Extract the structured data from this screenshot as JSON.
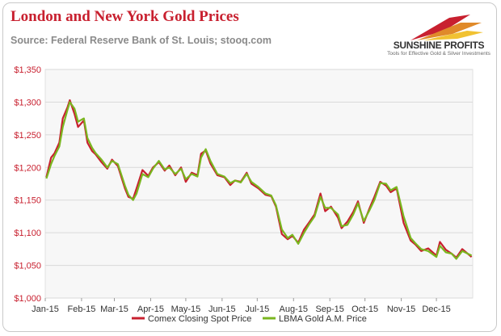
{
  "header": {
    "title": "London and New York Gold Prices",
    "subtitle": "Source: Federal Reserve Bank of St. Louis; stooq.com"
  },
  "logo": {
    "name": "SUNSHINE PROFITS",
    "tagline": "Tools for Effective Gold & Silver Investments"
  },
  "colors": {
    "comex": "#c8202f",
    "lbma": "#7ab61f",
    "grid": "#d9d9d9",
    "plot_bg": "#f7f7f7",
    "y_tick": "#c8202f"
  },
  "chart_data": {
    "type": "line",
    "title": "London and New York Gold Prices",
    "xlabel": "",
    "ylabel": "",
    "ylim": [
      1000,
      1350
    ],
    "y_ticks": [
      "$1,000",
      "$1,050",
      "$1,100",
      "$1,150",
      "$1,200",
      "$1,250",
      "$1,300",
      "$1,350"
    ],
    "y_tick_values": [
      1000,
      1050,
      1100,
      1150,
      1200,
      1250,
      1300,
      1350
    ],
    "x_ticks": [
      "Jan-15",
      "Feb-15",
      "Mar-15",
      "Apr-15",
      "May-15",
      "Jun-15",
      "Jul-15",
      "Aug-15",
      "Sep-15",
      "Oct-15",
      "Nov-15",
      "Dec-15"
    ],
    "grid": true,
    "legend_position": "bottom",
    "series": [
      {
        "name": "Comex Closing Spot Price",
        "x": [
          "2015-01-02",
          "2015-01-06",
          "2015-01-09",
          "2015-01-13",
          "2015-01-16",
          "2015-01-20",
          "2015-01-22",
          "2015-01-26",
          "2015-01-29",
          "2015-02-03",
          "2015-02-06",
          "2015-02-10",
          "2015-02-13",
          "2015-02-18",
          "2015-02-23",
          "2015-02-27",
          "2015-03-04",
          "2015-03-10",
          "2015-03-13",
          "2015-03-17",
          "2015-03-20",
          "2015-03-25",
          "2015-03-30",
          "2015-04-03",
          "2015-04-08",
          "2015-04-13",
          "2015-04-17",
          "2015-04-22",
          "2015-04-27",
          "2015-05-01",
          "2015-05-06",
          "2015-05-11",
          "2015-05-14",
          "2015-05-18",
          "2015-05-22",
          "2015-05-28",
          "2015-06-03",
          "2015-06-08",
          "2015-06-12",
          "2015-06-17",
          "2015-06-22",
          "2015-06-26",
          "2015-07-02",
          "2015-07-08",
          "2015-07-13",
          "2015-07-17",
          "2015-07-22",
          "2015-07-27",
          "2015-07-31",
          "2015-08-05",
          "2015-08-10",
          "2015-08-14",
          "2015-08-19",
          "2015-08-24",
          "2015-08-28",
          "2015-09-02",
          "2015-09-08",
          "2015-09-11",
          "2015-09-16",
          "2015-09-21",
          "2015-09-25",
          "2015-09-30",
          "2015-10-05",
          "2015-10-09",
          "2015-10-14",
          "2015-10-19",
          "2015-10-23",
          "2015-10-28",
          "2015-11-03",
          "2015-11-09",
          "2015-11-13",
          "2015-11-18",
          "2015-11-24",
          "2015-12-01",
          "2015-12-04",
          "2015-12-09",
          "2015-12-14",
          "2015-12-18",
          "2015-12-23",
          "2015-12-31"
        ],
        "values": [
          1185,
          1215,
          1222,
          1238,
          1275,
          1292,
          1303,
          1282,
          1262,
          1272,
          1238,
          1225,
          1220,
          1208,
          1198,
          1212,
          1202,
          1168,
          1155,
          1152,
          1168,
          1196,
          1187,
          1200,
          1208,
          1195,
          1203,
          1188,
          1200,
          1178,
          1192,
          1188,
          1221,
          1226,
          1206,
          1188,
          1185,
          1173,
          1180,
          1178,
          1192,
          1175,
          1168,
          1158,
          1156,
          1140,
          1098,
          1090,
          1095,
          1085,
          1105,
          1115,
          1128,
          1160,
          1133,
          1140,
          1123,
          1107,
          1117,
          1132,
          1148,
          1115,
          1138,
          1155,
          1178,
          1172,
          1162,
          1168,
          1115,
          1088,
          1082,
          1072,
          1076,
          1065,
          1086,
          1074,
          1068,
          1062,
          1075,
          1063
        ]
      },
      {
        "name": "LBMA Gold A.M. Price",
        "x": [
          "2015-01-02",
          "2015-01-06",
          "2015-01-09",
          "2015-01-13",
          "2015-01-16",
          "2015-01-20",
          "2015-01-22",
          "2015-01-26",
          "2015-01-29",
          "2015-02-03",
          "2015-02-06",
          "2015-02-10",
          "2015-02-13",
          "2015-02-18",
          "2015-02-23",
          "2015-02-27",
          "2015-03-04",
          "2015-03-10",
          "2015-03-13",
          "2015-03-17",
          "2015-03-20",
          "2015-03-25",
          "2015-03-30",
          "2015-04-03",
          "2015-04-08",
          "2015-04-13",
          "2015-04-17",
          "2015-04-22",
          "2015-04-27",
          "2015-05-01",
          "2015-05-06",
          "2015-05-11",
          "2015-05-14",
          "2015-05-18",
          "2015-05-22",
          "2015-05-28",
          "2015-06-03",
          "2015-06-08",
          "2015-06-12",
          "2015-06-17",
          "2015-06-22",
          "2015-06-26",
          "2015-07-02",
          "2015-07-08",
          "2015-07-13",
          "2015-07-17",
          "2015-07-22",
          "2015-07-27",
          "2015-07-31",
          "2015-08-05",
          "2015-08-10",
          "2015-08-14",
          "2015-08-19",
          "2015-08-24",
          "2015-08-28",
          "2015-09-02",
          "2015-09-08",
          "2015-09-11",
          "2015-09-16",
          "2015-09-21",
          "2015-09-25",
          "2015-09-30",
          "2015-10-05",
          "2015-10-09",
          "2015-10-14",
          "2015-10-19",
          "2015-10-23",
          "2015-10-28",
          "2015-11-03",
          "2015-11-09",
          "2015-11-13",
          "2015-11-18",
          "2015-11-24",
          "2015-12-01",
          "2015-12-04",
          "2015-12-09",
          "2015-12-14",
          "2015-12-18",
          "2015-12-23",
          "2015-12-31"
        ],
        "values": [
          1183,
          1205,
          1218,
          1232,
          1262,
          1288,
          1300,
          1290,
          1270,
          1275,
          1245,
          1230,
          1222,
          1212,
          1200,
          1210,
          1205,
          1172,
          1158,
          1150,
          1160,
          1190,
          1185,
          1198,
          1210,
          1197,
          1200,
          1190,
          1198,
          1182,
          1190,
          1186,
          1215,
          1228,
          1210,
          1190,
          1186,
          1176,
          1180,
          1177,
          1190,
          1178,
          1170,
          1160,
          1157,
          1142,
          1105,
          1092,
          1097,
          1083,
          1100,
          1112,
          1125,
          1155,
          1138,
          1138,
          1128,
          1110,
          1112,
          1128,
          1145,
          1118,
          1135,
          1150,
          1176,
          1175,
          1165,
          1170,
          1125,
          1092,
          1084,
          1075,
          1072,
          1063,
          1080,
          1070,
          1068,
          1060,
          1072,
          1065
        ]
      }
    ]
  }
}
